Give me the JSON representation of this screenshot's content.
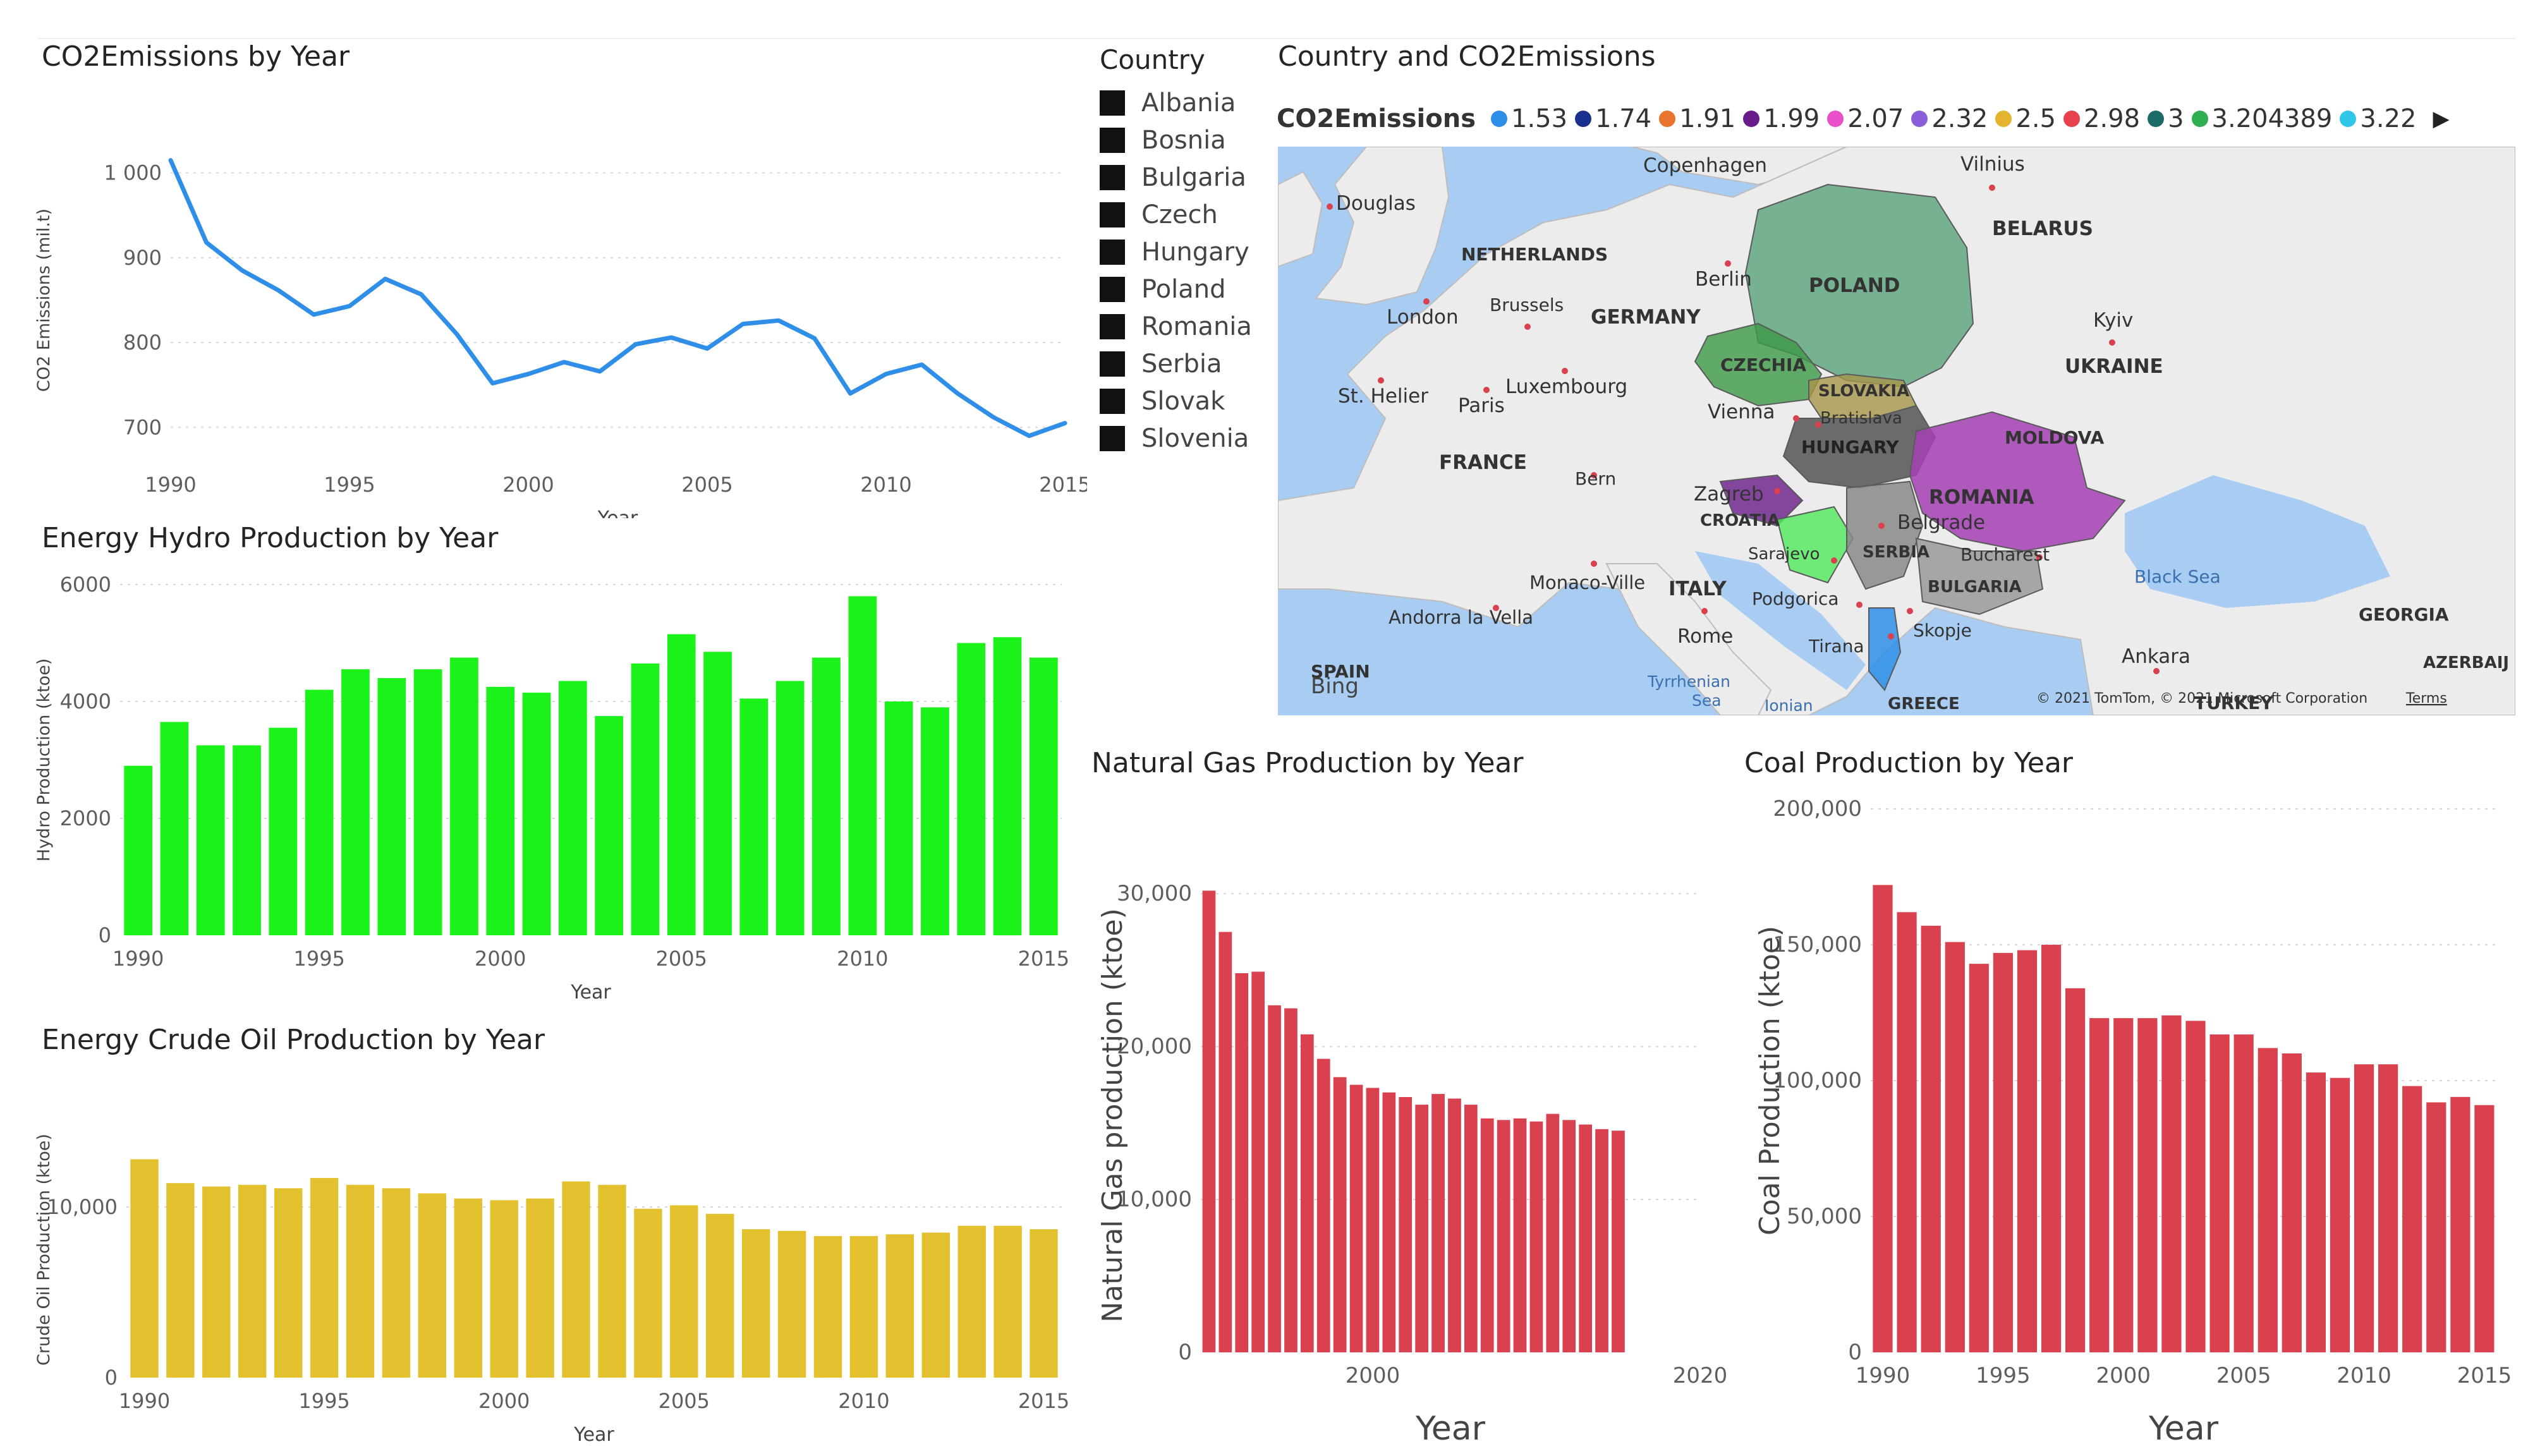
{
  "colors": {
    "line": "#2f8fe8",
    "hydro": "#1af21a",
    "crude": "#e3c02e",
    "gas": "#d9414e",
    "coal": "#d9414e",
    "grid": "#d8d8d8",
    "text": "#605e5c"
  },
  "legend": {
    "title": "Country",
    "items": [
      "Albania",
      "Bosnia",
      "Bulgaria",
      "Czech",
      "Hungary",
      "Poland",
      "Romania",
      "Serbia",
      "Slovak",
      "Slovenia"
    ]
  },
  "map": {
    "title": "Country and CO2Emissions",
    "legend_title": "CO2Emissions",
    "legend_items": [
      {
        "label": "1.53",
        "color": "#2f8fe8"
      },
      {
        "label": "1.74",
        "color": "#1b2f8f"
      },
      {
        "label": "1.91",
        "color": "#e8742f"
      },
      {
        "label": "1.99",
        "color": "#6a1b8a"
      },
      {
        "label": "2.07",
        "color": "#e84fc8"
      },
      {
        "label": "2.32",
        "color": "#8a5ed8"
      },
      {
        "label": "2.5",
        "color": "#e3b52e"
      },
      {
        "label": "2.98",
        "color": "#e8414e"
      },
      {
        "label": "3",
        "color": "#1b6b6b"
      },
      {
        "label": "3.204389",
        "color": "#2fae4f"
      },
      {
        "label": "3.22",
        "color": "#2fc8e8"
      }
    ],
    "labels": {
      "copenhagen": "Copenhagen",
      "vilnius": "Vilnius",
      "douglas": "Douglas",
      "belarus": "BELARUS",
      "netherlands": "NETHERLANDS",
      "berlin": "Berlin",
      "poland": "POLAND",
      "london": "London",
      "brussels": "Brussels",
      "germany": "GERMANY",
      "kyiv": "Kyiv",
      "czechia": "CZECHIA",
      "ukraine": "UKRAINE",
      "slovakia": "SLOVAKIA",
      "sthelier": "St. Helier",
      "luxembourg": "Luxembourg",
      "bratislava": "Bratislava",
      "paris": "Paris",
      "vienna": "Vienna",
      "moldova": "MOLDOVA",
      "hungary": "HUNGARY",
      "france": "FRANCE",
      "bern": "Bern",
      "zagreb": "Zagreb",
      "romania": "ROMANIA",
      "croatia": "CROATIA",
      "belgrade": "Belgrade",
      "sarajevo": "Sarajevo",
      "serbia": "SERBIA",
      "bucharest": "Bucharest",
      "blacksea": "Black Sea",
      "monaco": "Monaco-Ville",
      "italy": "ITALY",
      "podgorica": "Podgorica",
      "bulgaria": "BULGARIA",
      "andorra": "Andorra la Vella",
      "skopje": "Skopje",
      "georgia": "GEORGIA",
      "rome": "Rome",
      "tirana": "Tirana",
      "ankara": "Ankara",
      "azerbaijan": "AZERBAIJ",
      "spain": "SPAIN",
      "bing": "Bing",
      "tyrrhenian": "Tyrrhenian",
      "sea": "Sea",
      "ionian": "Ionian",
      "greece": "GREECE",
      "turkey": "TURKEY",
      "copyright": "© 2021 TomTom, © 2021 Microsoft Corporation",
      "terms": "Terms"
    }
  },
  "chart_data": [
    {
      "id": "co2",
      "type": "line",
      "title": "CO2Emissions by Year",
      "xlabel": "Year",
      "ylabel": "CO2 Emissions (mil.t)",
      "x": [
        1990,
        1991,
        1992,
        1993,
        1994,
        1995,
        1996,
        1997,
        1998,
        1999,
        2000,
        2001,
        2002,
        2003,
        2004,
        2005,
        2006,
        2007,
        2008,
        2009,
        2010,
        2011,
        2012,
        2013,
        2014,
        2015
      ],
      "values": [
        1015,
        918,
        885,
        862,
        833,
        843,
        875,
        857,
        810,
        752,
        763,
        777,
        766,
        798,
        806,
        793,
        822,
        826,
        805,
        740,
        763,
        774,
        740,
        712,
        690,
        705
      ],
      "ylim": [
        660,
        1040
      ],
      "yticks": [
        700,
        800,
        900,
        1000
      ],
      "ytick_labels": [
        "700",
        "800",
        "900",
        "1 000"
      ],
      "xticks": [
        1990,
        1995,
        2000,
        2005,
        2010,
        2015
      ],
      "xtick_labels": [
        "1990",
        "1995",
        "2000",
        "2005",
        "2010",
        "2015"
      ]
    },
    {
      "id": "hydro",
      "type": "bar",
      "title": "Energy Hydro Production by Year",
      "xlabel": "Year",
      "ylabel": "Hydro Production (ktoe)",
      "x": [
        1990,
        1991,
        1992,
        1993,
        1994,
        1995,
        1996,
        1997,
        1998,
        1999,
        2000,
        2001,
        2002,
        2003,
        2004,
        2005,
        2006,
        2007,
        2008,
        2009,
        2010,
        2011,
        2012,
        2013,
        2014,
        2015
      ],
      "values": [
        2900,
        3650,
        3250,
        3250,
        3550,
        4200,
        4550,
        4400,
        4550,
        4750,
        4250,
        4150,
        4350,
        3750,
        4650,
        5150,
        4850,
        4050,
        4350,
        4750,
        5800,
        4000,
        3900,
        5000,
        5100,
        4750
      ],
      "ylim": [
        0,
        6000
      ],
      "yticks": [
        0,
        2000,
        4000,
        6000
      ],
      "ytick_labels": [
        "0",
        "2000",
        "4000",
        "6000"
      ],
      "xticks": [
        1990,
        1995,
        2000,
        2005,
        2010,
        2015
      ],
      "xtick_labels": [
        "1990",
        "1995",
        "2000",
        "2005",
        "2010",
        "2015"
      ]
    },
    {
      "id": "crude",
      "type": "bar",
      "title": "Energy Crude Oil Production by Year",
      "xlabel": "Year",
      "ylabel": "Crude Oil Production (ktoe)",
      "x": [
        1990,
        1991,
        1992,
        1993,
        1994,
        1995,
        1996,
        1997,
        1998,
        1999,
        2000,
        2001,
        2002,
        2003,
        2004,
        2005,
        2006,
        2007,
        2008,
        2009,
        2010,
        2011,
        2012,
        2013,
        2014,
        2015
      ],
      "values": [
        12800,
        11400,
        11200,
        11300,
        11100,
        11700,
        11300,
        11100,
        10800,
        10500,
        10400,
        10500,
        11500,
        11300,
        9900,
        10100,
        9600,
        8700,
        8600,
        8300,
        8300,
        8400,
        8500,
        8900,
        8900,
        8700
      ],
      "ylim": [
        0,
        15000
      ],
      "yticks": [
        0,
        10000
      ],
      "ytick_labels": [
        "0",
        "10,000"
      ],
      "xticks": [
        1990,
        1995,
        2000,
        2005,
        2010,
        2015
      ],
      "xtick_labels": [
        "1990",
        "1995",
        "2000",
        "2005",
        "2010",
        "2015"
      ]
    },
    {
      "id": "gas",
      "type": "bar",
      "title": "Natural Gas Production by Year",
      "xlabel": "Year",
      "ylabel": "Natural Gas production (ktoe)",
      "x": [
        1990,
        1991,
        1992,
        1993,
        1994,
        1995,
        1996,
        1997,
        1998,
        1999,
        2000,
        2001,
        2002,
        2003,
        2004,
        2005,
        2006,
        2007,
        2008,
        2009,
        2010,
        2011,
        2012,
        2013,
        2014,
        2015
      ],
      "values": [
        30200,
        27500,
        24800,
        24900,
        22700,
        22500,
        20800,
        19200,
        18000,
        17500,
        17300,
        17000,
        16700,
        16200,
        16900,
        16600,
        16200,
        15300,
        15200,
        15300,
        15100,
        15600,
        15200,
        14900,
        14600,
        14500
      ],
      "ylim": [
        0,
        31000
      ],
      "yticks": [
        0,
        10000,
        20000,
        30000
      ],
      "ytick_labels": [
        "0",
        "10,000",
        "20,000",
        "30,000"
      ],
      "xticks": [
        2000,
        2020
      ],
      "xtick_labels": [
        "2000",
        "2020"
      ],
      "xrange": [
        1989.5,
        2020
      ]
    },
    {
      "id": "coal",
      "type": "bar",
      "title": "Coal Production by Year",
      "xlabel": "Year",
      "ylabel": "Coal Production (ktoe)",
      "x": [
        1990,
        1991,
        1992,
        1993,
        1994,
        1995,
        1996,
        1997,
        1998,
        1999,
        2000,
        2001,
        2002,
        2003,
        2004,
        2005,
        2006,
        2007,
        2008,
        2009,
        2010,
        2011,
        2012,
        2013,
        2014,
        2015
      ],
      "values": [
        172000,
        162000,
        157000,
        151000,
        143000,
        147000,
        148000,
        150000,
        134000,
        123000,
        123000,
        123000,
        124000,
        122000,
        117000,
        117000,
        112000,
        110000,
        103000,
        101000,
        106000,
        106000,
        98000,
        92000,
        94000,
        91000
      ],
      "ylim": [
        0,
        200000
      ],
      "yticks": [
        0,
        50000,
        100000,
        150000,
        200000
      ],
      "ytick_labels": [
        "0",
        "50,000",
        "100,000",
        "150,000",
        "200,000"
      ],
      "xticks": [
        1990,
        1995,
        2000,
        2005,
        2010,
        2015
      ],
      "xtick_labels": [
        "1990",
        "1995",
        "2000",
        "2005",
        "2010",
        "2015"
      ]
    }
  ]
}
